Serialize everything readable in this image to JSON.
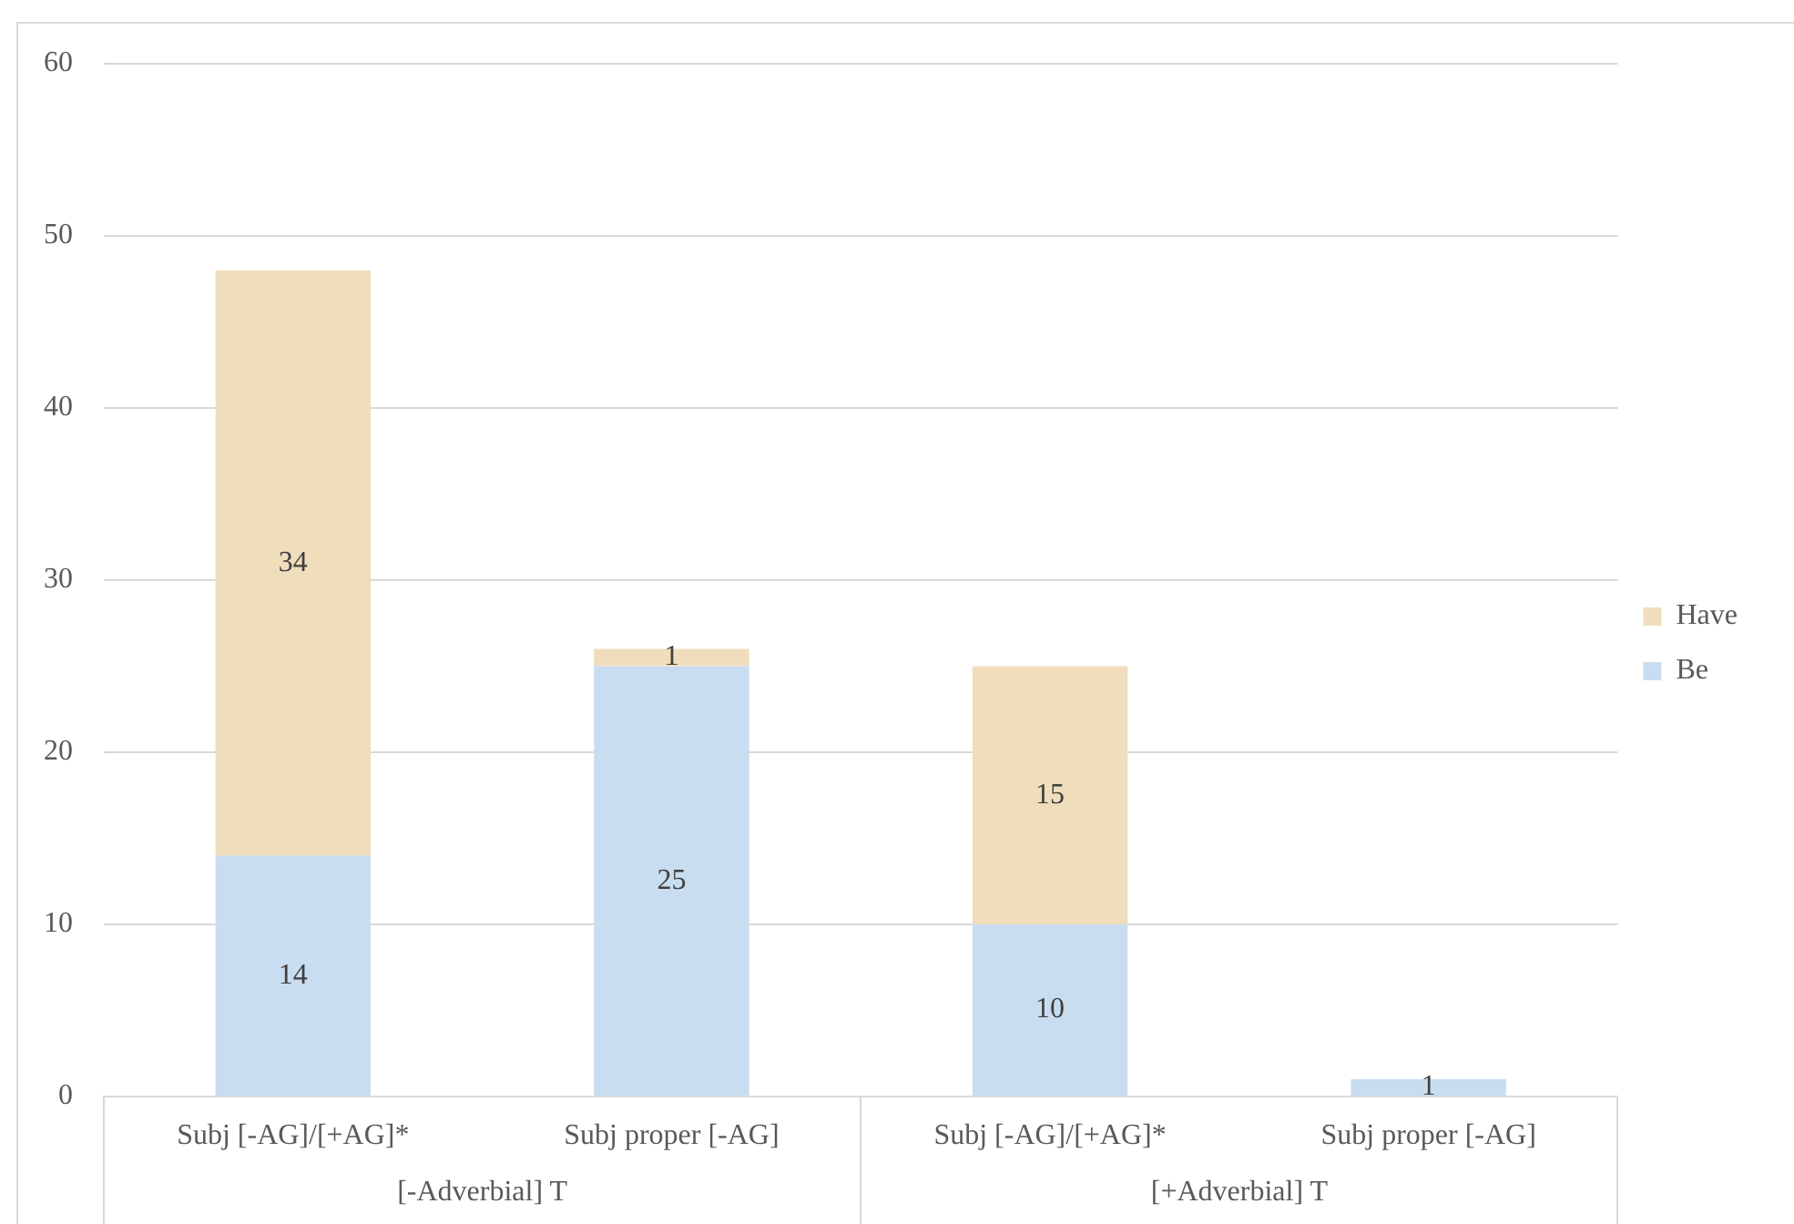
{
  "chart_data": {
    "type": "bar",
    "stacked": true,
    "categories": [
      "Subj [-AG]/[+AG]*",
      "Subj proper [-AG]",
      "Subj [-AG]/[+AG]*",
      "Subj proper [-AG]"
    ],
    "series": [
      {
        "name": "Be",
        "color": "#c9ddf1",
        "values": [
          14,
          25,
          10,
          1
        ]
      },
      {
        "name": "Have",
        "color": "#f0ddbc",
        "values": [
          34,
          1,
          15,
          null
        ]
      }
    ],
    "ylim": [
      0,
      60
    ],
    "yticks": [
      0,
      10,
      20,
      30,
      40,
      50,
      60
    ],
    "grid": "y",
    "legend": "right",
    "data_labels": true,
    "annotations": [
      "[-Adverbial] T",
      "[+Adverbial] T"
    ]
  }
}
